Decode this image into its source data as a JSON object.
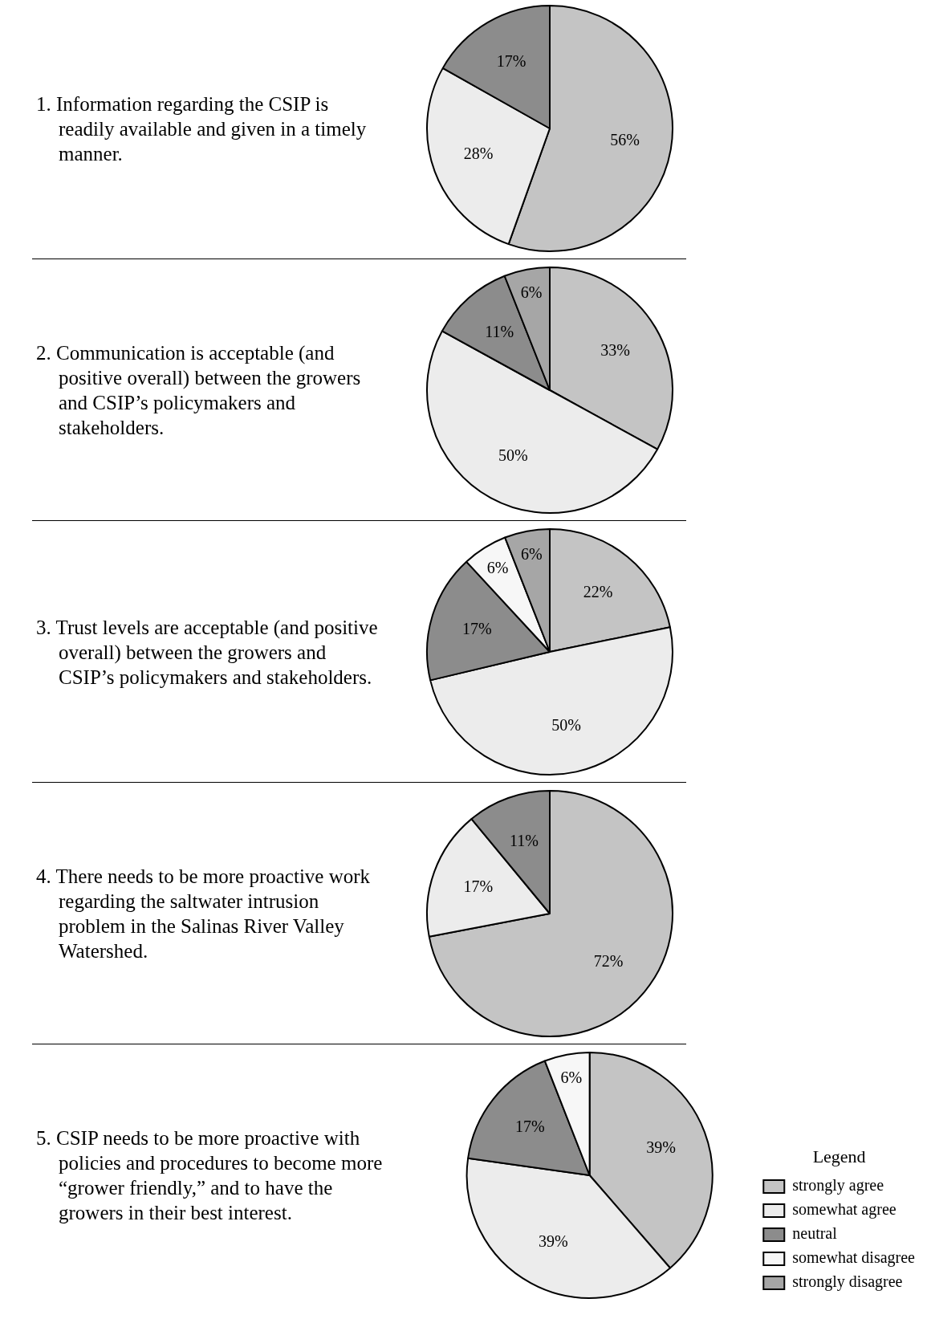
{
  "chart_data": [
    {
      "type": "pie",
      "title": "1. Information regarding the CSIP is readily available and given in a timely manner.",
      "categories": [
        null,
        null,
        null
      ],
      "values": [
        56,
        28,
        17
      ],
      "colors": [
        "#c4c4c4",
        "#ececec",
        "#8c8c8c"
      ],
      "value_labels": [
        "56%",
        "28%",
        "17%"
      ],
      "legend": false
    },
    {
      "type": "pie",
      "title": "2. Communication is acceptable (and positive overall) between the growers and CSIP’s policymakers and stakeholders.",
      "categories": [
        null,
        null,
        null,
        null
      ],
      "values": [
        33,
        50,
        11,
        6
      ],
      "colors": [
        "#c4c4c4",
        "#ececec",
        "#8c8c8c",
        "#a6a6a6"
      ],
      "value_labels": [
        "33%",
        "50%",
        "11%",
        "6%"
      ],
      "legend": false
    },
    {
      "type": "pie",
      "title": "3. Trust levels are acceptable (and positive overall) between the growers and CSIP’s policymakers and stakeholders.",
      "categories": [
        null,
        null,
        null,
        null,
        null
      ],
      "values": [
        22,
        50,
        17,
        6,
        6
      ],
      "colors": [
        "#c4c4c4",
        "#ececec",
        "#8c8c8c",
        "#f7f7f7",
        "#a6a6a6"
      ],
      "value_labels": [
        "22%",
        "50%",
        "17%",
        "6%",
        "6%"
      ],
      "legend": false
    },
    {
      "type": "pie",
      "title": "4. There needs to be more proactive work regarding the saltwater intrusion problem in the Salinas River Valley Watershed.",
      "categories": [
        null,
        null,
        null
      ],
      "values": [
        72,
        17,
        11
      ],
      "colors": [
        "#c4c4c4",
        "#ececec",
        "#8c8c8c"
      ],
      "value_labels": [
        "72%",
        "17%",
        "11%"
      ],
      "legend": false
    },
    {
      "type": "pie",
      "title": "5. CSIP needs to be more proactive with policies and procedures to become more “grower friendly,” and to have the growers in their best interest.",
      "categories": [
        "strongly agree",
        "somewhat agree",
        "neutral",
        "somewhat disagree",
        "strongly disagree"
      ],
      "values": [
        39,
        39,
        17,
        6,
        0
      ],
      "colors": [
        "#c4c4c4",
        "#ececec",
        "#8c8c8c",
        "#f7f7f7",
        "#a6a6a6"
      ],
      "value_labels": [
        "39%",
        "39%",
        "17%",
        "6%",
        null
      ],
      "legend": "right",
      "legend_title": "Legend"
    }
  ]
}
